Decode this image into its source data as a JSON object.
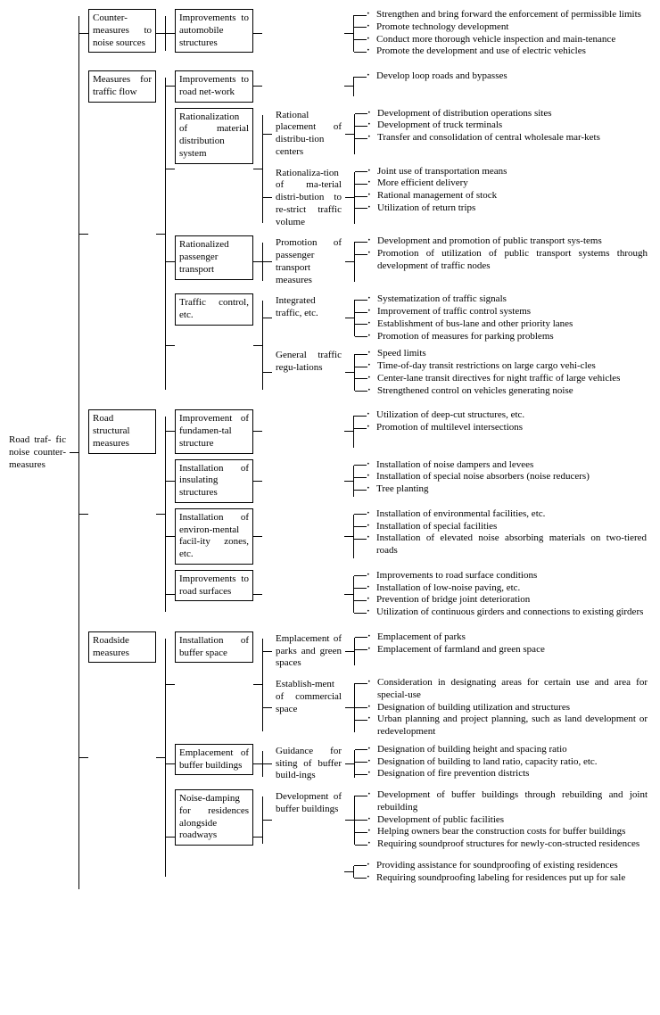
{
  "diagram": {
    "type": "tree",
    "background_color": "#ffffff",
    "line_color": "#000000",
    "font_family": "Times New Roman",
    "font_size_pt": 8,
    "root": "Road traf-\nfic noise counter-measures",
    "level1": [
      {
        "label": "Counter-measures to noise sources",
        "children": [
          {
            "label": "Improvements to automobile structures",
            "leaves": [
              "Strengthen and bring forward the enforcement of permissible limits",
              "Promote technology development",
              "Conduct more thorough vehicle inspection and main-tenance",
              "Promote the development and use of electric vehicles"
            ]
          }
        ]
      },
      {
        "label": "Measures for traffic flow",
        "children": [
          {
            "label": "Improvements to road net-work",
            "leaves": [
              "Develop loop roads and bypasses"
            ]
          },
          {
            "label": "Rationalization of material distribution system",
            "sub": [
              {
                "label": "Rational placement of distribu-tion centers",
                "leaves": [
                  "Development of distribution operations sites",
                  "Development of truck terminals",
                  "Transfer and consolidation of central wholesale mar-kets"
                ]
              },
              {
                "label": "Rationaliza-tion of ma-terial distri-bution to re-strict traffic volume",
                "leaves": [
                  "Joint use of transportation means",
                  "More efficient delivery",
                  "Rational management of stock",
                  "Utilization of return trips"
                ]
              }
            ]
          },
          {
            "label": "Rationalized passenger transport",
            "sub": [
              {
                "label": "Promotion of passenger transport measures",
                "leaves": [
                  "Development and promotion of public transport sys-tems",
                  "Promotion of utilization of public transport systems through development of traffic nodes"
                ]
              }
            ]
          },
          {
            "label": "Traffic control, etc.",
            "sub": [
              {
                "label": "Integrated traffic, etc.",
                "leaves": [
                  "Systematization of traffic signals",
                  "Improvement of traffic control systems",
                  "Establishment of bus-lane and other priority lanes",
                  "Promotion of measures for parking problems"
                ]
              },
              {
                "label": "General traffic regu-lations",
                "leaves": [
                  "Speed limits",
                  "Time-of-day transit restrictions on large cargo vehi-cles",
                  "Center-lane transit directives for night traffic of large vehicles",
                  "Strengthened control on vehicles generating noise"
                ]
              }
            ]
          }
        ]
      },
      {
        "label": "Road structural measures",
        "children": [
          {
            "label": "Improvement of fundamen-tal structure",
            "leaves": [
              "Utilization of deep-cut structures, etc.",
              "Promotion of multilevel intersections"
            ]
          },
          {
            "label": "Installation of insulating structures",
            "leaves": [
              "Installation of noise dampers and levees",
              "Installation of special noise absorbers (noise reducers)",
              "Tree planting"
            ]
          },
          {
            "label": "Installation of environ-mental facil-ity zones, etc.",
            "leaves": [
              "Installation of environmental facilities, etc.",
              "Installation of special facilities",
              "Installation of elevated noise absorbing materials on two-tiered roads"
            ]
          },
          {
            "label": "Improvements to road surfaces",
            "leaves": [
              "Improvements to road surface conditions",
              "Installation of low-noise paving, etc.",
              "Prevention of bridge joint deterioration",
              "Utilization of continuous girders and connections to existing girders"
            ]
          }
        ]
      },
      {
        "label": "Roadside measures",
        "children": [
          {
            "label": "Installation of buffer space",
            "sub": [
              {
                "label": "Emplacement of parks and green spaces",
                "leaves": [
                  "Emplacement of parks",
                  "Emplacement of farmland and green space"
                ]
              },
              {
                "label": "Establish-ment of commercial space",
                "leaves": [
                  "Consideration in designating areas for certain use and area for special-use",
                  "Designation of building utilization and structures",
                  "Urban planning and project planning, such as land development or redevelopment"
                ]
              }
            ]
          },
          {
            "label": "Emplacement of buffer buildings",
            "sub": [
              {
                "label": "Guidance for siting of buffer build-ings",
                "leaves": [
                  "Designation of building height and spacing ratio",
                  "Designation of building to land ratio, capacity ratio, etc.",
                  "Designation of fire prevention districts"
                ]
              }
            ]
          },
          {
            "label": "Noise-damping for residences alongside roadways",
            "sub": [
              {
                "label": "Development of buffer buildings",
                "leaves": [
                  "Development of buffer buildings through rebuilding and joint rebuilding",
                  "Development of public facilities",
                  "Helping owners bear the construction costs for buffer buildings",
                  "Requiring soundproof structures for newly-con-structed residences"
                ]
              }
            ],
            "extra_leaves": [
              "Providing assistance for soundproofing of existing residences",
              "Requiring soundproofing labeling for residences put up for sale"
            ]
          }
        ]
      }
    ]
  }
}
